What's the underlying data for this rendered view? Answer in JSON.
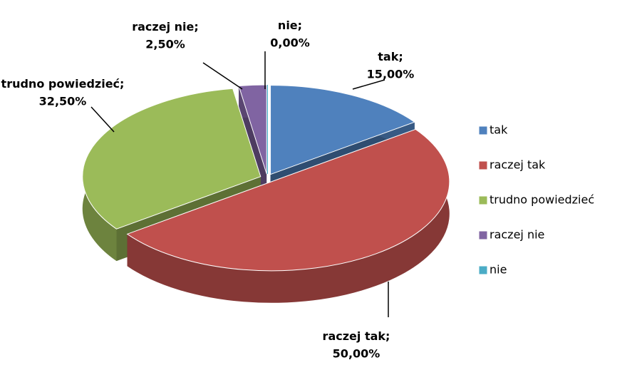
{
  "chart_data": {
    "type": "pie3d",
    "categories": [
      "tak",
      "raczej tak",
      "trudno powiedzieć",
      "raczej nie",
      "nie"
    ],
    "values": [
      15,
      50,
      32.5,
      2.5,
      0
    ],
    "value_labels": [
      "15,00%",
      "50,00%",
      "32,50%",
      "2,50%",
      "0,00%"
    ],
    "label_separator": ";",
    "colors": [
      "#4f81bd",
      "#c0504d",
      "#9bbb59",
      "#8064a2",
      "#4bacc6"
    ],
    "legend": "right"
  }
}
